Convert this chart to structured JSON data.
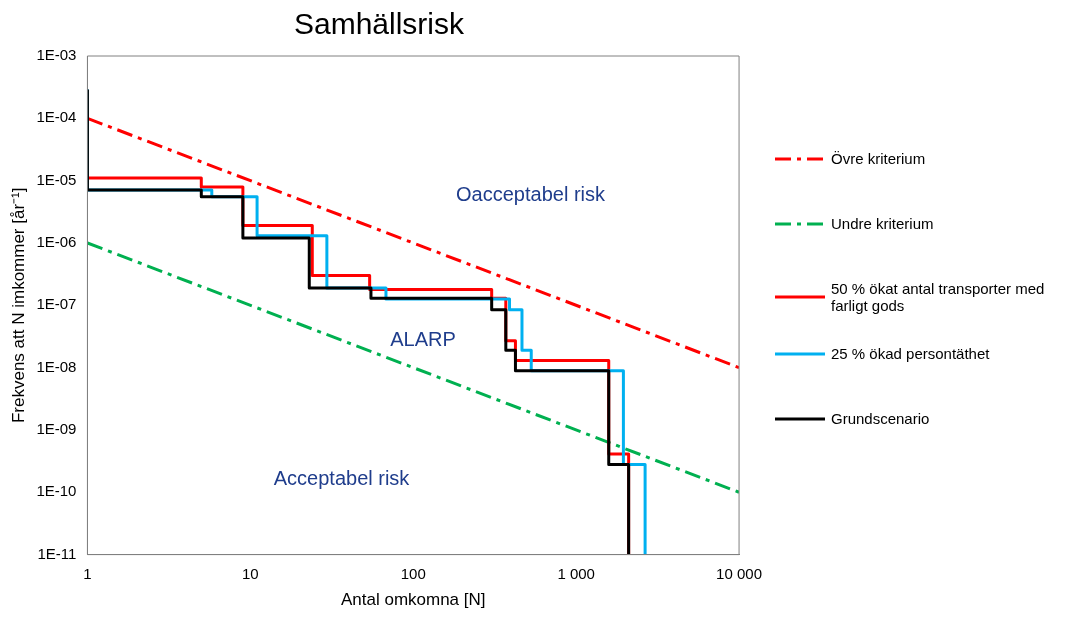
{
  "chart_data": {
    "type": "step",
    "title": "Samhällsrisk",
    "xlabel": "Antal omkomna [N]",
    "ylabel": "Frekvens att N imkommer [år⁻¹]",
    "log": "xy",
    "xlim": [
      1,
      10000
    ],
    "xticks": [
      1,
      10,
      100,
      {
        "value": 1000,
        "label": "1 000"
      },
      {
        "value": 10000,
        "label": "10 000"
      }
    ],
    "ylim": [
      1e-11,
      0.001
    ],
    "yticks": [
      {
        "value": 1e-11,
        "label": "1E-11"
      },
      {
        "value": 1e-10,
        "label": "1E-10"
      },
      {
        "value": 1e-09,
        "label": "1E-09"
      },
      {
        "value": 1e-08,
        "label": "1E-08"
      },
      {
        "value": 1e-07,
        "label": "1E-07"
      },
      {
        "value": 1e-06,
        "label": "1E-06"
      },
      {
        "value": 1e-05,
        "label": "1E-05"
      },
      {
        "value": 0.0001,
        "label": "1E-04"
      },
      {
        "value": 0.001,
        "label": "1E-03"
      }
    ],
    "grid": false,
    "legend": "right",
    "marker": "none",
    "annotations": [
      "Oacceptabel risk",
      "ALARP",
      "Acceptabel risk"
    ],
    "series": [
      {
        "name": "Övre kriterium",
        "type": "line",
        "line_style": "dashed",
        "color": "#ff0000",
        "x": [
          1,
          10000
        ],
        "values": [
          0.0001,
          1e-08
        ]
      },
      {
        "name": "Undre kriterium",
        "type": "line",
        "line_style": "dashed",
        "color": "#00b050",
        "x": [
          1,
          10000
        ],
        "values": [
          1e-06,
          1e-10
        ]
      },
      {
        "name": "50 % ökat antal transporter med farligt gods",
        "color": "#ff0000",
        "x": [
          1,
          5,
          9,
          24,
          54,
          303,
          370,
          424,
          1585,
          2100
        ],
        "values": [
          1.1e-05,
          7.9e-06,
          1.9e-06,
          3e-07,
          1.8e-07,
          1.3e-07,
          2.7e-08,
          1.3e-08,
          4.1e-10,
          1e-11
        ]
      },
      {
        "name": "25 % ökad persontäthet",
        "color": "#00b0f0",
        "x": [
          1,
          1,
          5.8,
          11,
          29.5,
          68,
          390,
          465,
          530,
          1950,
          2650
        ],
        "values": [
          0.00029,
          7.1e-06,
          5.5e-06,
          1.3e-06,
          1.9e-07,
          1.26e-07,
          8.5e-08,
          1.9e-08,
          8.9e-09,
          2.8e-10,
          1e-11
        ]
      },
      {
        "name": "Grundscenario",
        "color": "#000000",
        "x": [
          1,
          1,
          5,
          9,
          23,
          55,
          303,
          370,
          424,
          1585,
          2100
        ],
        "values": [
          0.00029,
          7.1e-06,
          5.5e-06,
          1.2e-06,
          1.9e-07,
          1.3e-07,
          8.5e-08,
          1.9e-08,
          8.9e-09,
          2.8e-10,
          1e-11
        ]
      }
    ]
  }
}
